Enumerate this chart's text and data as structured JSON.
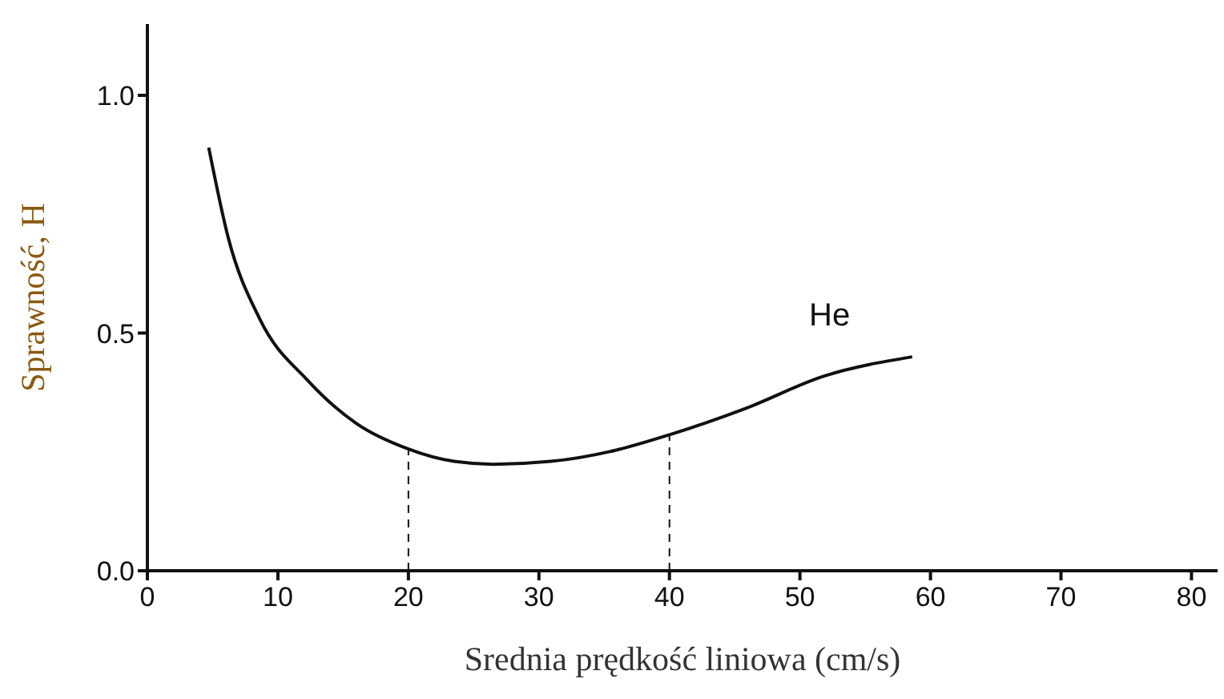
{
  "chart_data": {
    "type": "line",
    "xlabel": "Srednia prędkość liniowa (cm/s)",
    "ylabel": "Sprawność, H",
    "x": [
      4.7,
      6.2,
      8.6,
      12.3,
      16,
      20,
      23.5,
      26.5,
      30.9,
      35.8,
      40,
      45.7,
      51.9,
      58.6
    ],
    "series": [
      {
        "color": "#111111",
        "values": [
          0.89,
          0.7,
          0.53,
          0.4,
          0.31,
          0.256,
          0.23,
          0.224,
          0.23,
          0.253,
          0.286,
          0.34,
          0.41,
          0.45
        ]
      }
    ],
    "xlim": [
      0,
      82
    ],
    "xticks": [
      0,
      10,
      20,
      30,
      40,
      50,
      60,
      70,
      80
    ],
    "ylim": [
      0,
      1.15
    ],
    "yticks": [
      {
        "value": 0,
        "label": "0.0"
      },
      0.5,
      {
        "value": 1,
        "label": "1.0"
      }
    ],
    "ref_lines": [
      {
        "axis": "x",
        "value": 20,
        "line_style": "dashed"
      },
      {
        "axis": "x",
        "value": 40,
        "line_style": "dashed"
      }
    ],
    "annotations": [
      "He"
    ],
    "grid": false,
    "legend": false,
    "marker": "none",
    "line_style": "solid"
  }
}
